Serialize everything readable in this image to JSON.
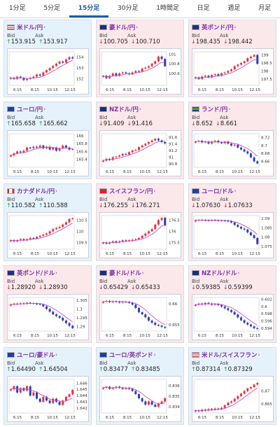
{
  "tabs": [
    {
      "label": "1分足",
      "active": false
    },
    {
      "label": "5分足",
      "active": false
    },
    {
      "label": "15分足",
      "active": true
    },
    {
      "label": "30分足",
      "active": false
    },
    {
      "label": "1時間足",
      "active": false
    },
    {
      "label": "日足",
      "active": false
    },
    {
      "label": "週足",
      "active": false
    },
    {
      "label": "月足",
      "active": false
    }
  ],
  "labels": {
    "bid": "Bid",
    "ask": "Ask"
  },
  "colors": {
    "up": "#1a9f4e",
    "down": "#dd2233",
    "bull": "#e8323c",
    "bear": "#2b3fb8",
    "ma": "#c050c8"
  },
  "cards": [
    {
      "name": "米ドル/円",
      "flag": "us",
      "dir": "up",
      "bid": "153.915",
      "ask": "153.917",
      "chart_data": {
        "type": "candlestick",
        "x_ticks": [
          "6:15",
          "8:15",
          "10:15",
          "12:15"
        ],
        "y_ticks": [
          "154",
          "153",
          "152"
        ],
        "ylim": [
          151.4,
          154.5
        ],
        "closes": [
          152.1,
          152.0,
          152.2,
          152.1,
          151.9,
          152.0,
          152.1,
          152.2,
          152.4,
          152.3,
          152.6,
          152.8,
          153.0,
          153.2,
          153.4,
          153.6,
          153.5,
          153.8,
          154.0,
          153.9
        ]
      }
    },
    {
      "name": "豪ドル/円",
      "flag": "au",
      "dir": "down",
      "bid": "100.705",
      "ask": "100.710",
      "chart_data": {
        "type": "candlestick",
        "x_ticks": [
          "6:15",
          "8:15",
          "10:15",
          "12:15"
        ],
        "y_ticks": [
          "101",
          "100.8",
          "100.6"
        ],
        "ylim": [
          100.35,
          101.05
        ],
        "closes": [
          100.55,
          100.5,
          100.55,
          100.6,
          100.55,
          100.6,
          100.62,
          100.6,
          100.58,
          100.62,
          100.65,
          100.64,
          100.7,
          100.72,
          100.75,
          100.8,
          100.85,
          100.95,
          100.9,
          100.75
        ]
      }
    },
    {
      "name": "英ポンド/円",
      "flag": "gb",
      "dir": "down",
      "bid": "198.435",
      "ask": "198.442",
      "chart_data": {
        "type": "candlestick",
        "x_ticks": [
          "6:15",
          "8:15",
          "10:15",
          "12:15"
        ],
        "y_ticks": [
          "199",
          "198.5",
          "198",
          "197.5"
        ],
        "ylim": [
          197.1,
          199.2
        ],
        "closes": [
          197.6,
          197.5,
          197.65,
          197.7,
          197.6,
          197.75,
          197.8,
          197.7,
          197.85,
          197.9,
          198.0,
          198.1,
          198.3,
          198.4,
          198.5,
          198.6,
          198.8,
          198.9,
          199.0,
          198.45
        ]
      }
    },
    {
      "name": "ユーロ/円",
      "flag": "eu",
      "dir": "up",
      "bid": "165.658",
      "ask": "165.662",
      "chart_data": {
        "type": "candlestick",
        "x_ticks": [
          "6:15",
          "8:15",
          "10:15",
          "12:15"
        ],
        "y_ticks": [
          "166",
          "165.8",
          "165.6",
          "165.4"
        ],
        "ylim": [
          165.2,
          166.05
        ],
        "closes": [
          165.5,
          165.55,
          165.6,
          165.58,
          165.62,
          165.7,
          165.68,
          165.72,
          165.7,
          165.75,
          165.68,
          165.72,
          165.65,
          165.7,
          165.62,
          165.68,
          165.75,
          165.7,
          165.65,
          165.66
        ]
      }
    },
    {
      "name": "NZドル/円",
      "flag": "nz",
      "dir": "down",
      "bid": "91.409",
      "ask": "91.416",
      "chart_data": {
        "type": "candlestick",
        "x_ticks": [
          "6:15",
          "8:15",
          "10:15",
          "12:15"
        ],
        "y_ticks": [
          "91.6",
          "91.4",
          "91.2",
          "91",
          "90.8"
        ],
        "ylim": [
          90.7,
          91.7
        ],
        "closes": [
          90.9,
          90.95,
          90.92,
          91.0,
          91.02,
          91.05,
          91.1,
          91.08,
          91.15,
          91.2,
          91.22,
          91.3,
          91.35,
          91.4,
          91.45,
          91.5,
          91.55,
          91.5,
          91.45,
          91.41
        ]
      }
    },
    {
      "name": "ランド/円",
      "flag": "za",
      "dir": "down",
      "bid": "8.652",
      "ask": "8.661",
      "chart_data": {
        "type": "candlestick",
        "x_ticks": [
          "6:15",
          "8:15",
          "10:15",
          "12:15"
        ],
        "y_ticks": [
          "8.72",
          "8.7",
          "8.68",
          "8.66"
        ],
        "ylim": [
          8.645,
          8.73
        ],
        "closes": [
          8.71,
          8.712,
          8.708,
          8.71,
          8.705,
          8.71,
          8.712,
          8.708,
          8.706,
          8.71,
          8.705,
          8.7,
          8.702,
          8.695,
          8.69,
          8.685,
          8.68,
          8.67,
          8.66,
          8.655
        ]
      }
    },
    {
      "name": "カナダドル/円",
      "flag": "ca",
      "dir": "up",
      "bid": "110.582",
      "ask": "110.588",
      "chart_data": {
        "type": "candlestick",
        "x_ticks": [
          "6:15",
          "8:15",
          "10:15",
          "12:15"
        ],
        "y_ticks": [
          "110.5",
          "110",
          "109.5"
        ],
        "ylim": [
          109.2,
          110.7
        ],
        "closes": [
          109.6,
          109.55,
          109.6,
          109.65,
          109.6,
          109.65,
          109.7,
          109.68,
          109.75,
          109.8,
          109.85,
          109.9,
          110.0,
          110.1,
          110.15,
          110.2,
          110.3,
          110.4,
          110.55,
          110.58
        ]
      }
    },
    {
      "name": "スイスフラン/円",
      "flag": "ch",
      "dir": "down",
      "bid": "176.255",
      "ask": "176.271",
      "chart_data": {
        "type": "candlestick",
        "x_ticks": [
          "6:15",
          "8:15",
          "10:15",
          "12:15"
        ],
        "y_ticks": [
          "176.5",
          "176",
          "175.5"
        ],
        "ylim": [
          175.2,
          176.7
        ],
        "closes": [
          175.5,
          175.45,
          175.5,
          175.55,
          175.5,
          175.55,
          175.6,
          175.58,
          175.6,
          175.62,
          175.65,
          175.7,
          175.8,
          175.9,
          176.0,
          176.1,
          176.3,
          176.5,
          176.6,
          176.26
        ]
      }
    },
    {
      "name": "ユーロ/ドル",
      "flag": "eu-us",
      "dir": "down",
      "bid": "1.07630",
      "ask": "1.07633",
      "chart_data": {
        "type": "candlestick",
        "x_ticks": [
          "6:15",
          "8:15",
          "10:15",
          "12:15"
        ],
        "y_ticks": [
          "1.09",
          "1.085",
          "1.08",
          "1.075"
        ],
        "ylim": [
          1.0735,
          1.0915
        ],
        "closes": [
          1.089,
          1.0892,
          1.0891,
          1.089,
          1.0889,
          1.0891,
          1.089,
          1.0888,
          1.0889,
          1.0887,
          1.0885,
          1.0878,
          1.0865,
          1.0855,
          1.0845,
          1.084,
          1.0825,
          1.081,
          1.0795,
          1.0763
        ]
      }
    },
    {
      "name": "英ポンド/ドル",
      "flag": "gb-us",
      "dir": "down",
      "bid": "1.28920",
      "ask": "1.28930",
      "chart_data": {
        "type": "candlestick",
        "x_ticks": [
          "6:15",
          "8:15",
          "10:15",
          "12:15"
        ],
        "y_ticks": [
          "1.305",
          "1.3",
          "1.295",
          "1.29"
        ],
        "ylim": [
          1.2875,
          1.3065
        ],
        "closes": [
          1.3025,
          1.303,
          1.3028,
          1.3032,
          1.303,
          1.3035,
          1.3033,
          1.303,
          1.3028,
          1.3025,
          1.3015,
          1.3,
          1.2985,
          1.297,
          1.296,
          1.295,
          1.2935,
          1.292,
          1.2905,
          1.2892
        ]
      }
    },
    {
      "name": "豪ドル/ドル",
      "flag": "au-us",
      "dir": "down",
      "bid": "0.65429",
      "ask": "0.65433",
      "chart_data": {
        "type": "candlestick",
        "x_ticks": [
          "6:15",
          "8:15",
          "10:15",
          "12:15"
        ],
        "y_ticks": [
          "0.66",
          "0.655"
        ],
        "ylim": [
          0.6535,
          0.6615
        ],
        "closes": [
          0.6605,
          0.6607,
          0.6604,
          0.6606,
          0.6605,
          0.6603,
          0.6605,
          0.6604,
          0.6602,
          0.6598,
          0.659,
          0.658,
          0.6575,
          0.6568,
          0.656,
          0.6555,
          0.655,
          0.6548,
          0.6545,
          0.6543
        ]
      }
    },
    {
      "name": "NZドル/ドル",
      "flag": "nz-us",
      "dir": "down",
      "bid": "0.59385",
      "ask": "0.59399",
      "chart_data": {
        "type": "candlestick",
        "x_ticks": [
          "6:15",
          "8:15",
          "10:15",
          "12:15"
        ],
        "y_ticks": [
          "0.602",
          "0.6",
          "0.598",
          "0.596",
          "0.594"
        ],
        "ylim": [
          0.5932,
          0.6025
        ],
        "closes": [
          0.6005,
          0.6008,
          0.6006,
          0.601,
          0.6008,
          0.6005,
          0.6007,
          0.6004,
          0.6,
          0.5995,
          0.599,
          0.5985,
          0.5978,
          0.597,
          0.5962,
          0.5955,
          0.595,
          0.5945,
          0.594,
          0.5938
        ]
      }
    },
    {
      "name": "ユーロ/豪ドル",
      "flag": "eu-au",
      "dir": "up",
      "bid": "1.64490",
      "ask": "1.64504",
      "chart_data": {
        "type": "candlestick",
        "x_ticks": [
          "6:15",
          "8:15",
          "10:15",
          "12:15"
        ],
        "y_ticks": [
          "1.646",
          "1.645",
          "1.644",
          "1.643",
          "1.642"
        ],
        "ylim": [
          1.6412,
          1.6466
        ],
        "closes": [
          1.645,
          1.6455,
          1.6445,
          1.6452,
          1.6448,
          1.6455,
          1.644,
          1.6445,
          1.6435,
          1.643,
          1.6438,
          1.6432,
          1.6428,
          1.6435,
          1.643,
          1.6425,
          1.6432,
          1.6438,
          1.6442,
          1.6449
        ]
      }
    },
    {
      "name": "ユーロ/英ポンド",
      "flag": "eu-gb",
      "dir": "up",
      "bid": "0.83477",
      "ask": "0.83485",
      "chart_data": {
        "type": "candlestick",
        "x_ticks": [
          "6:15",
          "8:15",
          "10:15",
          "12:15"
        ],
        "y_ticks": [
          "0.836",
          "0.835",
          "0.834"
        ],
        "ylim": [
          0.8334,
          0.8366
        ],
        "closes": [
          0.8358,
          0.8359,
          0.8357,
          0.8358,
          0.8359,
          0.8358,
          0.8357,
          0.8358,
          0.8357,
          0.8355,
          0.8352,
          0.8348,
          0.8345,
          0.8342,
          0.8345,
          0.8342,
          0.834,
          0.8343,
          0.8345,
          0.8348
        ]
      }
    },
    {
      "name": "米ドル/スイスフラン",
      "flag": "us-ch",
      "dir": "up",
      "bid": "0.87314",
      "ask": "0.87329",
      "chart_data": {
        "type": "candlestick",
        "x_ticks": [
          "6:15",
          "8:15",
          "10:15",
          "12:15"
        ],
        "y_ticks": [
          "0.87",
          "0.865"
        ],
        "ylim": [
          0.8615,
          0.8745
        ],
        "closes": [
          0.8625,
          0.8622,
          0.8628,
          0.8625,
          0.863,
          0.8628,
          0.8632,
          0.863,
          0.8635,
          0.8645,
          0.8655,
          0.866,
          0.867,
          0.868,
          0.869,
          0.87,
          0.871,
          0.8715,
          0.8725,
          0.8731
        ]
      }
    }
  ]
}
